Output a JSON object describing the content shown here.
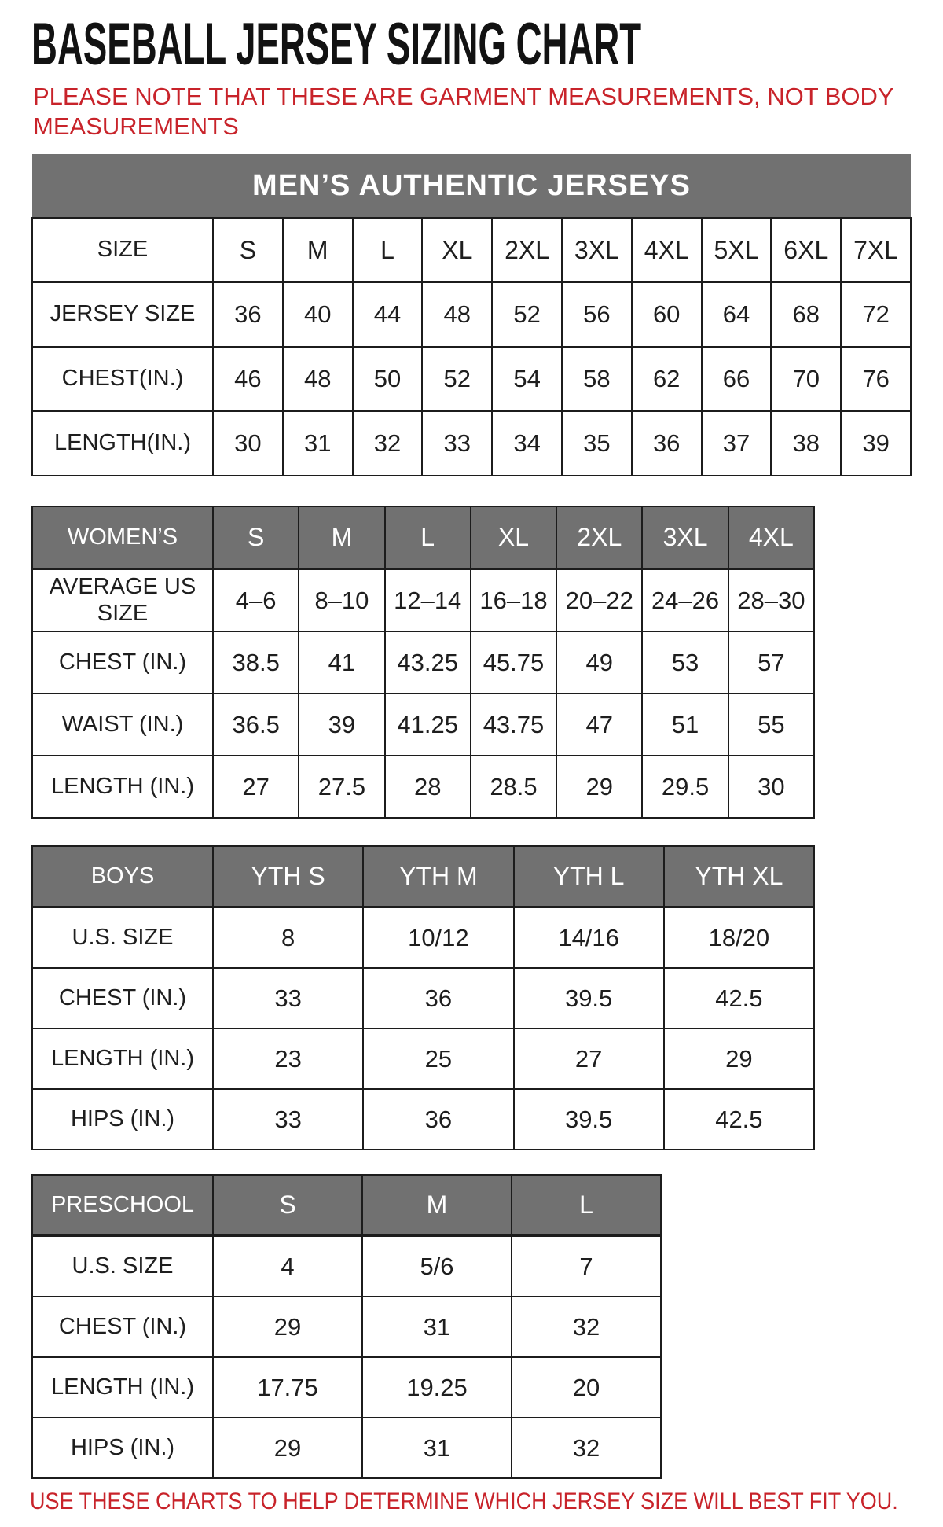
{
  "title": "BASEBALL JERSEY SIZING CHART",
  "note": "PLEASE NOTE THAT THESE ARE GARMENT MEASUREMENTS, NOT BODY MEASUREMENTS",
  "footer": "USE THESE CHARTS TO HELP DETERMINE WHICH JERSEY SIZE WILL BEST FIT YOU.",
  "colors": {
    "accent_red": "#C8232A",
    "header_gray": "#717171",
    "border_black": "#1C1C1C"
  },
  "tables": [
    {
      "id": "mens",
      "banner": "MEN’S AUTHENTIC JERSEYS",
      "header": [
        "SIZE",
        "S",
        "M",
        "L",
        "XL",
        "2XL",
        "3XL",
        "4XL",
        "5XL",
        "6XL",
        "7XL"
      ],
      "rows": [
        [
          "JERSEY SIZE",
          "36",
          "40",
          "44",
          "48",
          "52",
          "56",
          "60",
          "64",
          "68",
          "72"
        ],
        [
          "CHEST(IN.)",
          "46",
          "48",
          "50",
          "52",
          "54",
          "58",
          "62",
          "66",
          "70",
          "76"
        ],
        [
          "LENGTH(IN.)",
          "30",
          "31",
          "32",
          "33",
          "34",
          "35",
          "36",
          "37",
          "38",
          "39"
        ]
      ]
    },
    {
      "id": "womens",
      "banner": null,
      "header": [
        "WOMEN’S",
        "S",
        "M",
        "L",
        "XL",
        "2XL",
        "3XL",
        "4XL"
      ],
      "rows": [
        [
          "AVERAGE US SIZE",
          "4–6",
          "8–10",
          "12–14",
          "16–18",
          "20–22",
          "24–26",
          "28–30"
        ],
        [
          "CHEST (IN.)",
          "38.5",
          "41",
          "43.25",
          "45.75",
          "49",
          "53",
          "57"
        ],
        [
          "WAIST (IN.)",
          "36.5",
          "39",
          "41.25",
          "43.75",
          "47",
          "51",
          "55"
        ],
        [
          "LENGTH (IN.)",
          "27",
          "27.5",
          "28",
          "28.5",
          "29",
          "29.5",
          "30"
        ]
      ]
    },
    {
      "id": "boys",
      "banner": null,
      "header": [
        "BOYS",
        "YTH S",
        "YTH M",
        "YTH L",
        "YTH XL"
      ],
      "rows": [
        [
          "U.S. SIZE",
          "8",
          "10/12",
          "14/16",
          "18/20"
        ],
        [
          "CHEST (IN.)",
          "33",
          "36",
          "39.5",
          "42.5"
        ],
        [
          "LENGTH (IN.)",
          "23",
          "25",
          "27",
          "29"
        ],
        [
          "HIPS (IN.)",
          "33",
          "36",
          "39.5",
          "42.5"
        ]
      ]
    },
    {
      "id": "preschool",
      "banner": null,
      "header": [
        "PRESCHOOL",
        "S",
        "M",
        "L"
      ],
      "rows": [
        [
          "U.S. SIZE",
          "4",
          "5/6",
          "7"
        ],
        [
          "CHEST (IN.)",
          "29",
          "31",
          "32"
        ],
        [
          "LENGTH (IN.)",
          "17.75",
          "19.25",
          "20"
        ],
        [
          "HIPS (IN.)",
          "29",
          "31",
          "32"
        ]
      ]
    }
  ]
}
